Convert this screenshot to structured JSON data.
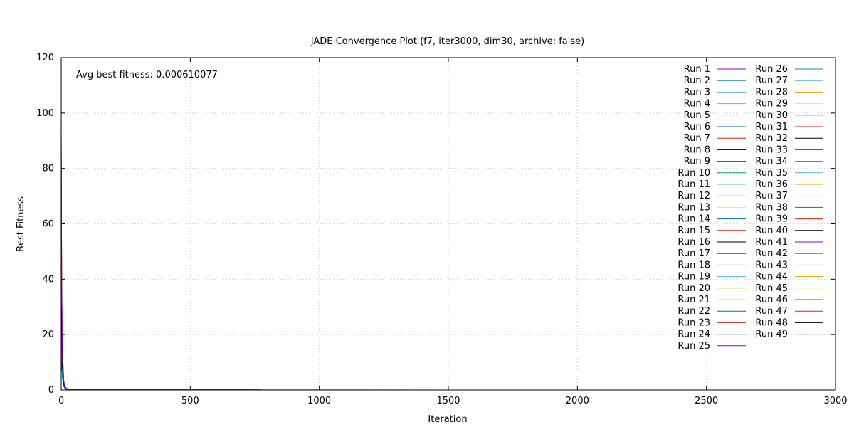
{
  "chart_data": {
    "type": "line",
    "title": "JADE Convergence Plot (f7, iter3000, dim30, archive: false)",
    "xlabel": "Iteration",
    "ylabel": "Best Fitness",
    "xlim": [
      0,
      3000
    ],
    "ylim": [
      0,
      120
    ],
    "xticks": [
      "0",
      "500",
      "1000",
      "1500",
      "2000",
      "2500",
      "3000"
    ],
    "yticks": [
      "0",
      "20",
      "40",
      "60",
      "80",
      "100",
      "120"
    ],
    "grid": true,
    "legend_position": "top-right",
    "annotation": "Avg best fitness: 0.000610077",
    "series_colors": [
      "#9400d3",
      "#009e73",
      "#56b4e9",
      "#e69f00",
      "#f0e442",
      "#0072b2",
      "#e51e10",
      "#000000"
    ],
    "series": [
      {
        "name": "Run 1",
        "x": [
          0,
          2,
          5,
          10,
          15,
          20,
          30,
          50,
          100,
          3000
        ],
        "values": [
          96,
          40,
          14,
          3,
          1.2,
          0.6,
          0.3,
          0.15,
          0.03,
          0.0006
        ]
      },
      {
        "name": "Run 2",
        "x": [
          0,
          2,
          5,
          10,
          15,
          20,
          30,
          50,
          100,
          3000
        ],
        "values": [
          85,
          30,
          10,
          2.5,
          1.0,
          0.5,
          0.25,
          0.12,
          0.02,
          0.0006
        ]
      },
      {
        "name": "Run 3",
        "x": [
          0,
          2,
          5,
          10,
          15,
          20,
          30,
          50,
          100,
          3000
        ],
        "values": [
          60,
          22,
          8,
          2,
          0.9,
          0.4,
          0.2,
          0.1,
          0.02,
          0.0006
        ]
      },
      {
        "name": "Run 4",
        "x": [
          0,
          2,
          5,
          10,
          15,
          20,
          30,
          50,
          100,
          3000
        ],
        "values": [
          88,
          35,
          12,
          3,
          1.1,
          0.5,
          0.25,
          0.12,
          0.02,
          0.0006
        ]
      },
      {
        "name": "Run 5",
        "x": [
          0,
          2,
          5,
          10,
          15,
          20,
          30,
          50,
          100,
          3000
        ],
        "values": [
          50,
          18,
          7,
          1.8,
          0.8,
          0.4,
          0.2,
          0.1,
          0.02,
          0.0006
        ]
      },
      {
        "name": "Run 6",
        "x": [
          0,
          2,
          5,
          10,
          15,
          20,
          30,
          50,
          100,
          3000
        ],
        "values": [
          14,
          9,
          5,
          1.5,
          0.7,
          0.35,
          0.2,
          0.1,
          0.02,
          0.0006
        ]
      },
      {
        "name": "Run 7",
        "x": [
          0,
          2,
          5,
          10,
          15,
          20,
          30,
          50,
          100,
          3000
        ],
        "values": [
          84,
          32,
          11,
          2.8,
          1.0,
          0.5,
          0.25,
          0.12,
          0.02,
          0.0006
        ]
      },
      {
        "name": "Run 8",
        "x": [
          0,
          2,
          5,
          10,
          15,
          20,
          30,
          50,
          100,
          3000
        ],
        "values": [
          70,
          26,
          9,
          2.2,
          0.9,
          0.45,
          0.22,
          0.11,
          0.02,
          0.0006
        ]
      },
      {
        "name": "Run 9",
        "x": [
          0,
          2,
          5,
          10,
          15,
          20,
          30,
          50,
          100,
          3000
        ],
        "values": [
          42,
          16,
          6,
          1.6,
          0.7,
          0.35,
          0.18,
          0.09,
          0.02,
          0.0006
        ]
      },
      {
        "name": "Run 10",
        "x": [
          0,
          2,
          5,
          10,
          15,
          20,
          30,
          50,
          100,
          3000
        ],
        "values": [
          78,
          28,
          10,
          2.5,
          1.0,
          0.5,
          0.25,
          0.12,
          0.02,
          0.0006
        ]
      },
      {
        "name": "Run 11",
        "x": [
          0,
          2,
          5,
          10,
          15,
          20,
          30,
          50,
          100,
          3000
        ],
        "values": [
          55,
          20,
          7,
          1.8,
          0.8,
          0.4,
          0.2,
          0.1,
          0.02,
          0.0006
        ]
      },
      {
        "name": "Run 12",
        "x": [
          0,
          2,
          5,
          10,
          15,
          20,
          30,
          50,
          100,
          3000
        ],
        "values": [
          90,
          36,
          12,
          3,
          1.1,
          0.55,
          0.27,
          0.13,
          0.02,
          0.0006
        ]
      },
      {
        "name": "Run 13",
        "x": [
          0,
          2,
          5,
          10,
          15,
          20,
          30,
          50,
          100,
          3000
        ],
        "values": [
          45,
          17,
          6,
          1.6,
          0.7,
          0.35,
          0.18,
          0.09,
          0.02,
          0.0006
        ]
      },
      {
        "name": "Run 14",
        "x": [
          0,
          2,
          5,
          10,
          15,
          20,
          30,
          50,
          100,
          3000
        ],
        "values": [
          30,
          12,
          5,
          1.4,
          0.6,
          0.3,
          0.16,
          0.08,
          0.02,
          0.0006
        ]
      },
      {
        "name": "Run 15",
        "x": [
          0,
          2,
          5,
          10,
          15,
          20,
          30,
          50,
          100,
          3000
        ],
        "values": [
          82,
          31,
          11,
          2.7,
          1.0,
          0.5,
          0.25,
          0.12,
          0.02,
          0.0006
        ]
      },
      {
        "name": "Run 16",
        "x": [
          0,
          2,
          5,
          10,
          15,
          20,
          30,
          50,
          100,
          3000
        ],
        "values": [
          65,
          24,
          8,
          2.1,
          0.9,
          0.45,
          0.22,
          0.11,
          0.02,
          0.0006
        ]
      },
      {
        "name": "Run 17",
        "x": [
          0,
          2,
          5,
          10,
          15,
          20,
          30,
          50,
          100,
          3000
        ],
        "values": [
          38,
          15,
          6,
          1.5,
          0.7,
          0.35,
          0.18,
          0.09,
          0.02,
          0.0006
        ]
      },
      {
        "name": "Run 18",
        "x": [
          0,
          2,
          5,
          10,
          15,
          20,
          30,
          50,
          100,
          3000
        ],
        "values": [
          72,
          27,
          9,
          2.3,
          0.95,
          0.47,
          0.23,
          0.11,
          0.02,
          0.0006
        ]
      },
      {
        "name": "Run 19",
        "x": [
          0,
          2,
          5,
          10,
          15,
          20,
          30,
          50,
          100,
          3000
        ],
        "values": [
          52,
          19,
          7,
          1.7,
          0.75,
          0.38,
          0.19,
          0.1,
          0.02,
          0.0006
        ]
      },
      {
        "name": "Run 20",
        "x": [
          0,
          2,
          5,
          10,
          15,
          20,
          30,
          50,
          100,
          3000
        ],
        "values": [
          86,
          33,
          11,
          2.8,
          1.05,
          0.52,
          0.26,
          0.12,
          0.02,
          0.0006
        ]
      },
      {
        "name": "Run 21",
        "x": [
          0,
          2,
          5,
          10,
          15,
          20,
          30,
          50,
          100,
          3000
        ],
        "values": [
          47,
          18,
          6.5,
          1.7,
          0.72,
          0.36,
          0.18,
          0.09,
          0.02,
          0.0006
        ]
      },
      {
        "name": "Run 22",
        "x": [
          0,
          2,
          5,
          10,
          15,
          20,
          30,
          50,
          100,
          3000
        ],
        "values": [
          25,
          11,
          4.5,
          1.3,
          0.6,
          0.3,
          0.15,
          0.08,
          0.02,
          0.0006
        ]
      },
      {
        "name": "Run 23",
        "x": [
          0,
          2,
          5,
          10,
          15,
          20,
          30,
          50,
          100,
          3000
        ],
        "values": [
          80,
          30,
          10.5,
          2.6,
          1.0,
          0.5,
          0.25,
          0.12,
          0.02,
          0.0006
        ]
      },
      {
        "name": "Run 24",
        "x": [
          0,
          2,
          5,
          10,
          15,
          20,
          30,
          50,
          100,
          3000
        ],
        "values": [
          62,
          23,
          8,
          2.0,
          0.85,
          0.42,
          0.21,
          0.1,
          0.02,
          0.0006
        ]
      },
      {
        "name": "Run 25",
        "x": [
          0,
          2,
          5,
          10,
          15,
          20,
          30,
          50,
          100,
          3000
        ],
        "values": [
          40,
          15.5,
          6,
          1.55,
          0.7,
          0.35,
          0.18,
          0.09,
          0.02,
          0.0006
        ]
      },
      {
        "name": "Run 26",
        "x": [
          0,
          2,
          5,
          10,
          15,
          20,
          30,
          50,
          100,
          3000
        ],
        "values": [
          76,
          28,
          9.5,
          2.4,
          0.98,
          0.49,
          0.24,
          0.12,
          0.02,
          0.0006
        ]
      },
      {
        "name": "Run 27",
        "x": [
          0,
          2,
          5,
          10,
          15,
          20,
          30,
          50,
          100,
          3000
        ],
        "values": [
          57,
          21,
          7.5,
          1.9,
          0.8,
          0.4,
          0.2,
          0.1,
          0.02,
          0.0006
        ]
      },
      {
        "name": "Run 28",
        "x": [
          0,
          2,
          5,
          10,
          15,
          20,
          30,
          50,
          100,
          3000
        ],
        "values": [
          92,
          37,
          12.5,
          3.1,
          1.15,
          0.57,
          0.28,
          0.13,
          0.02,
          0.0006
        ]
      },
      {
        "name": "Run 29",
        "x": [
          0,
          2,
          5,
          10,
          15,
          20,
          30,
          50,
          100,
          3000
        ],
        "values": [
          44,
          16.5,
          6,
          1.6,
          0.7,
          0.35,
          0.18,
          0.09,
          0.02,
          0.0006
        ]
      },
      {
        "name": "Run 30",
        "x": [
          0,
          2,
          5,
          10,
          15,
          20,
          30,
          50,
          100,
          3000
        ],
        "values": [
          20,
          10,
          4.5,
          1.3,
          0.6,
          0.3,
          0.15,
          0.08,
          0.02,
          0.0006
        ]
      },
      {
        "name": "Run 31",
        "x": [
          0,
          2,
          5,
          10,
          15,
          20,
          30,
          50,
          100,
          3000
        ],
        "values": [
          83,
          31,
          10.8,
          2.7,
          1.0,
          0.5,
          0.25,
          0.12,
          0.02,
          0.0006
        ]
      },
      {
        "name": "Run 32",
        "x": [
          0,
          2,
          5,
          10,
          15,
          20,
          30,
          50,
          100,
          3000
        ],
        "values": [
          67,
          25,
          8.5,
          2.15,
          0.9,
          0.45,
          0.22,
          0.11,
          0.02,
          0.0006
        ]
      },
      {
        "name": "Run 33",
        "x": [
          0,
          2,
          5,
          10,
          15,
          20,
          30,
          50,
          100,
          3000
        ],
        "values": [
          36,
          14,
          5.5,
          1.5,
          0.68,
          0.34,
          0.17,
          0.09,
          0.02,
          0.0006
        ]
      },
      {
        "name": "Run 34",
        "x": [
          0,
          2,
          5,
          10,
          15,
          20,
          30,
          50,
          100,
          3000
        ],
        "values": [
          74,
          27.5,
          9.2,
          2.35,
          0.96,
          0.48,
          0.24,
          0.11,
          0.02,
          0.0006
        ]
      },
      {
        "name": "Run 35",
        "x": [
          0,
          2,
          5,
          10,
          15,
          20,
          30,
          50,
          100,
          3000
        ],
        "values": [
          54,
          20,
          7,
          1.75,
          0.76,
          0.38,
          0.19,
          0.1,
          0.02,
          0.0006
        ]
      },
      {
        "name": "Run 36",
        "x": [
          0,
          2,
          5,
          10,
          15,
          20,
          30,
          50,
          100,
          3000
        ],
        "values": [
          87,
          34,
          11.3,
          2.85,
          1.07,
          0.53,
          0.26,
          0.12,
          0.02,
          0.0006
        ]
      },
      {
        "name": "Run 37",
        "x": [
          0,
          2,
          5,
          10,
          15,
          20,
          30,
          50,
          100,
          3000
        ],
        "values": [
          48,
          18,
          6.6,
          1.7,
          0.73,
          0.36,
          0.18,
          0.09,
          0.02,
          0.0006
        ]
      },
      {
        "name": "Run 38",
        "x": [
          0,
          2,
          5,
          10,
          15,
          20,
          30,
          50,
          100,
          3000
        ],
        "values": [
          28,
          11.5,
          4.8,
          1.35,
          0.6,
          0.3,
          0.15,
          0.08,
          0.02,
          0.0006
        ]
      },
      {
        "name": "Run 39",
        "x": [
          0,
          2,
          5,
          10,
          15,
          20,
          30,
          50,
          100,
          3000
        ],
        "values": [
          81,
          30.5,
          10.6,
          2.65,
          1.0,
          0.5,
          0.25,
          0.12,
          0.02,
          0.0006
        ]
      },
      {
        "name": "Run 40",
        "x": [
          0,
          2,
          5,
          10,
          15,
          20,
          30,
          50,
          100,
          3000
        ],
        "values": [
          63,
          23.5,
          8.1,
          2.05,
          0.86,
          0.43,
          0.21,
          0.1,
          0.02,
          0.0006
        ]
      },
      {
        "name": "Run 41",
        "x": [
          0,
          2,
          5,
          10,
          15,
          20,
          30,
          50,
          100,
          3000
        ],
        "values": [
          39,
          15,
          5.8,
          1.52,
          0.69,
          0.35,
          0.17,
          0.09,
          0.02,
          0.0006
        ]
      },
      {
        "name": "Run 42",
        "x": [
          0,
          2,
          5,
          10,
          15,
          20,
          30,
          50,
          100,
          3000
        ],
        "values": [
          77,
          28.5,
          9.6,
          2.42,
          0.99,
          0.49,
          0.24,
          0.12,
          0.02,
          0.0006
        ]
      },
      {
        "name": "Run 43",
        "x": [
          0,
          2,
          5,
          10,
          15,
          20,
          30,
          50,
          100,
          3000
        ],
        "values": [
          58,
          21.5,
          7.6,
          1.92,
          0.81,
          0.4,
          0.2,
          0.1,
          0.02,
          0.0006
        ]
      },
      {
        "name": "Run 44",
        "x": [
          0,
          2,
          5,
          10,
          15,
          20,
          30,
          50,
          100,
          3000
        ],
        "values": [
          89,
          35,
          11.8,
          2.95,
          1.1,
          0.55,
          0.27,
          0.13,
          0.02,
          0.0006
        ]
      },
      {
        "name": "Run 45",
        "x": [
          0,
          2,
          5,
          10,
          15,
          20,
          30,
          50,
          100,
          3000
        ],
        "values": [
          46,
          17.5,
          6.4,
          1.65,
          0.71,
          0.36,
          0.18,
          0.09,
          0.02,
          0.0006
        ]
      },
      {
        "name": "Run 46",
        "x": [
          0,
          2,
          5,
          10,
          15,
          20,
          30,
          50,
          100,
          3000
        ],
        "values": [
          22,
          10.5,
          4.6,
          1.32,
          0.6,
          0.3,
          0.15,
          0.08,
          0.02,
          0.0006
        ]
      },
      {
        "name": "Run 47",
        "x": [
          0,
          2,
          5,
          10,
          15,
          20,
          30,
          50,
          100,
          3000
        ],
        "values": [
          84,
          31.5,
          10.9,
          2.72,
          1.02,
          0.51,
          0.25,
          0.12,
          0.02,
          0.0006
        ]
      },
      {
        "name": "Run 48",
        "x": [
          0,
          2,
          5,
          10,
          15,
          20,
          30,
          50,
          100,
          3000
        ],
        "values": [
          68,
          25.5,
          8.6,
          2.18,
          0.91,
          0.45,
          0.22,
          0.11,
          0.02,
          0.0006
        ]
      },
      {
        "name": "Run 49",
        "x": [
          0,
          2,
          5,
          10,
          15,
          20,
          30,
          50,
          100,
          3000
        ],
        "values": [
          94,
          38,
          13,
          3.2,
          1.18,
          0.58,
          0.29,
          0.14,
          0.02,
          0.0006
        ]
      }
    ]
  }
}
